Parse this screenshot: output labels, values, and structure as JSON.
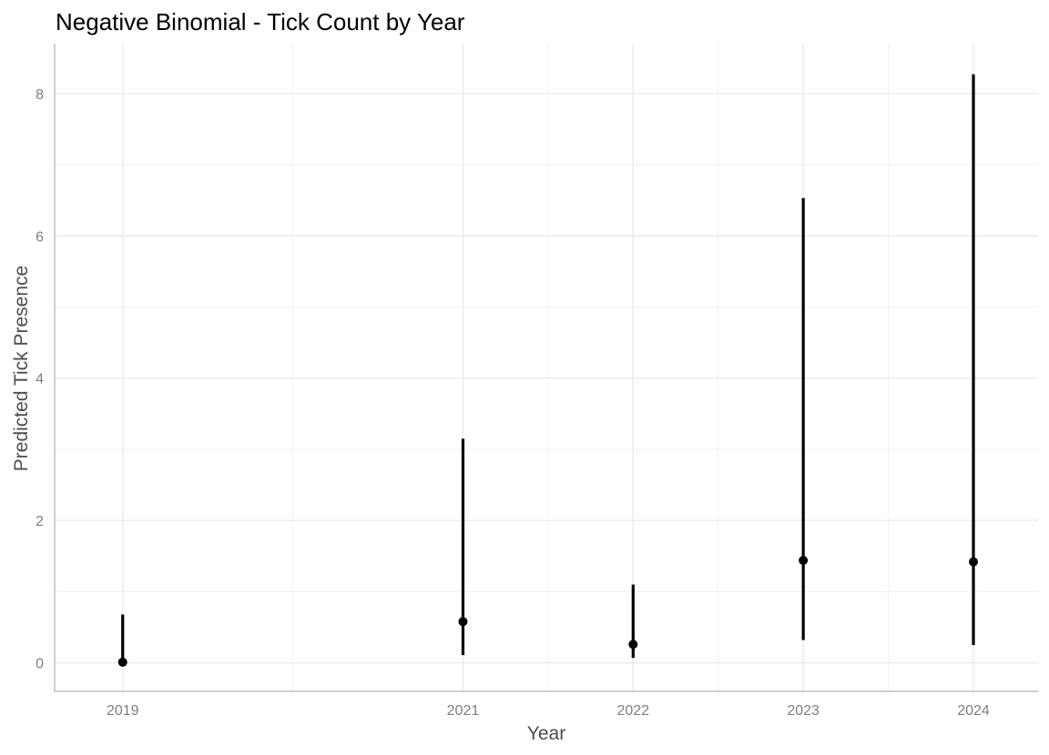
{
  "chart_data": {
    "type": "scatter",
    "title": "Negative Binomial - Tick Count by Year",
    "xlabel": "Year",
    "ylabel": "Predicted Tick Presence",
    "x_ticks": [
      "2019",
      "2021",
      "2022",
      "2023",
      "2024"
    ],
    "y_ticks": [
      "0",
      "2",
      "4",
      "6",
      "8"
    ],
    "xlim": [
      2018.6,
      2024.38
    ],
    "ylim": [
      -0.4,
      8.7
    ],
    "grid": true,
    "series": [
      {
        "points": [
          {
            "x": 2019,
            "y": 0.01,
            "lower": 0.0,
            "upper": 0.68
          },
          {
            "x": 2021,
            "y": 0.58,
            "lower": 0.11,
            "upper": 3.15
          },
          {
            "x": 2022,
            "y": 0.26,
            "lower": 0.07,
            "upper": 1.1
          },
          {
            "x": 2023,
            "y": 1.44,
            "lower": 0.32,
            "upper": 6.53
          },
          {
            "x": 2024,
            "y": 1.42,
            "lower": 0.25,
            "upper": 8.27
          }
        ]
      }
    ],
    "colors": {
      "points": "#000000",
      "grid": "#ebebeb",
      "axis": "#bdbdbd"
    }
  }
}
